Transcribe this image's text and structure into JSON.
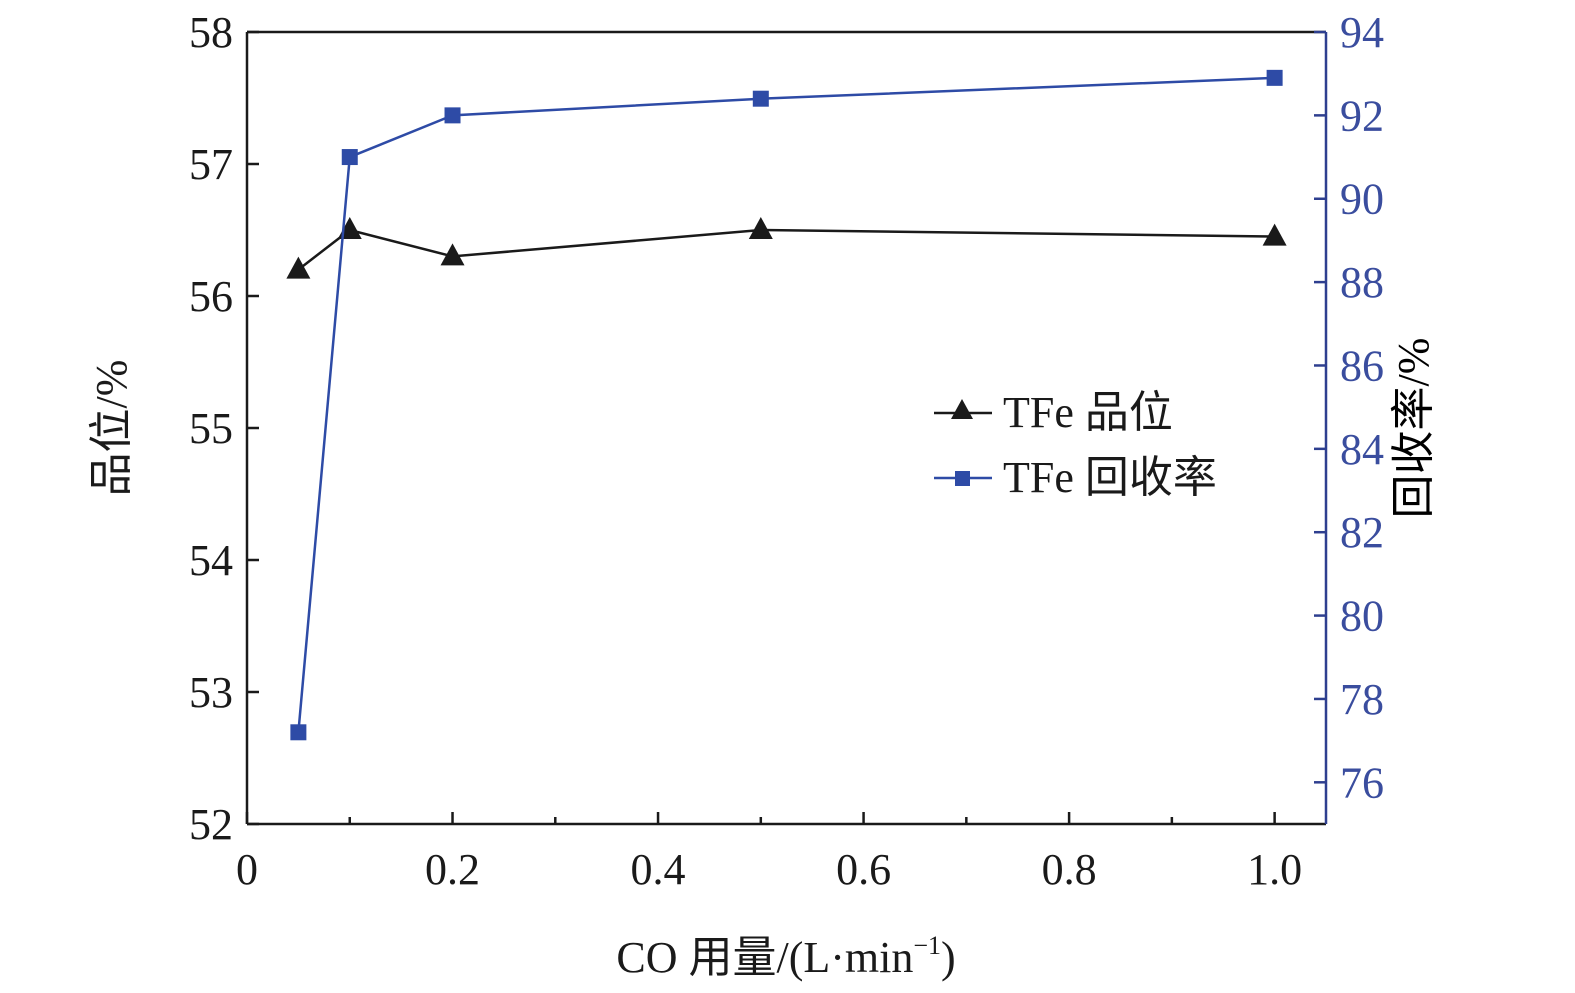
{
  "chart_data": {
    "type": "line",
    "xlabel": "CO 用量/(L·min",
    "xlabel_sup": "−1",
    "xlabel_close": ")",
    "ylabel_left": "品位/%",
    "ylabel_right": "回收率/%",
    "xlim": [
      0,
      1.05
    ],
    "ylim_left": [
      52,
      58
    ],
    "ylim_right": [
      75,
      94
    ],
    "x_ticks": [
      "0",
      "0.2",
      "0.4",
      "0.6",
      "0.8",
      "1.0"
    ],
    "x_tick_values": [
      0,
      0.2,
      0.4,
      0.6,
      0.8,
      1.0
    ],
    "x_minor_ticks": [
      0.1,
      0.3,
      0.5,
      0.7,
      0.9
    ],
    "y_left_ticks": [
      "52",
      "53",
      "54",
      "55",
      "56",
      "57",
      "58"
    ],
    "y_left_tick_values": [
      52,
      53,
      54,
      55,
      56,
      57,
      58
    ],
    "y_right_ticks": [
      "76",
      "78",
      "80",
      "82",
      "84",
      "86",
      "88",
      "90",
      "92",
      "94"
    ],
    "y_right_tick_values": [
      76,
      78,
      80,
      82,
      84,
      86,
      88,
      90,
      92,
      94
    ],
    "grid": false,
    "legend_position": "right-center",
    "series": [
      {
        "name": "TFe 品位",
        "axis": "left",
        "marker": "triangle",
        "color": "#1a1a1a",
        "x": [
          0.05,
          0.1,
          0.2,
          0.5,
          1.0
        ],
        "y": [
          56.2,
          56.5,
          56.3,
          56.5,
          56.45
        ]
      },
      {
        "name": "TFe 回收率",
        "axis": "right",
        "marker": "square",
        "color": "#2e4ba6",
        "x": [
          0.05,
          0.1,
          0.2,
          0.5,
          1.0
        ],
        "y": [
          77.2,
          91.0,
          92.0,
          92.4,
          92.9
        ]
      }
    ],
    "colors": {
      "axis_left": "#1a1a1a",
      "axis_right": "#2e3f8f",
      "right_text": "#3a4d9e"
    }
  }
}
